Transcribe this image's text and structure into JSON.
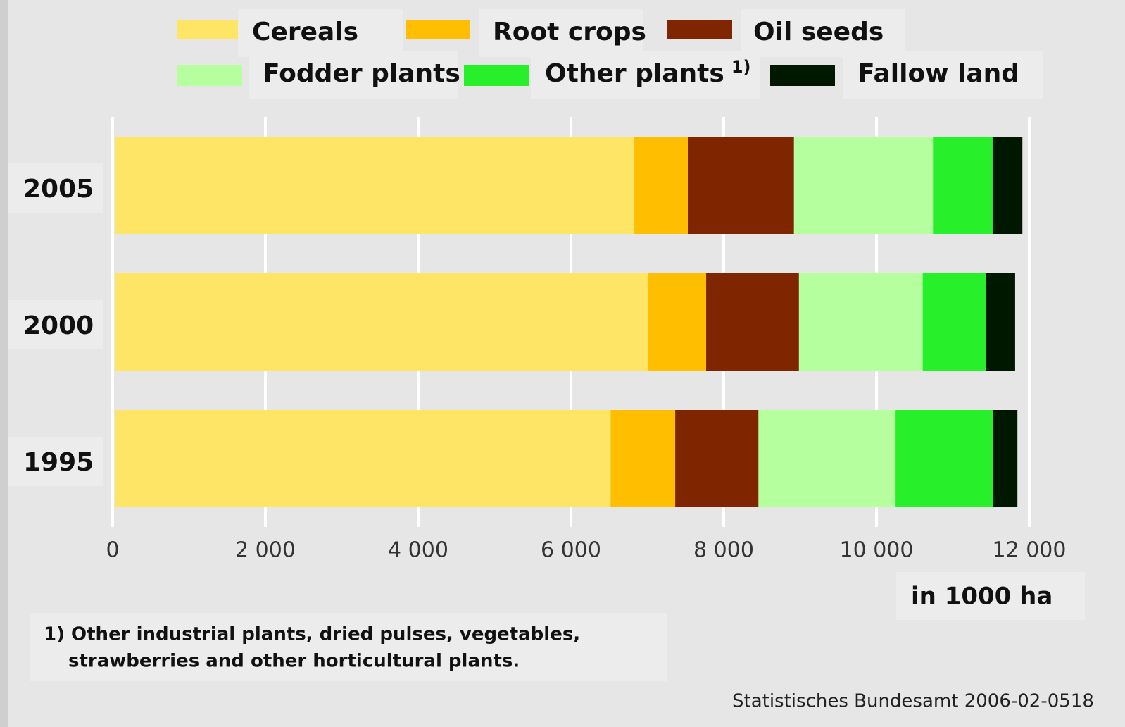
{
  "chart_data": {
    "type": "stacked-barh",
    "categories": [
      "2005",
      "2000",
      "1995"
    ],
    "series": [
      {
        "name": "Cereals",
        "color": "#ffe566",
        "values": [
          6830,
          7005,
          6520
        ]
      },
      {
        "name": "Root crops",
        "color": "#ffbe00",
        "values": [
          700,
          765,
          845
        ]
      },
      {
        "name": "Oil seeds",
        "color": "#7f2500",
        "values": [
          1390,
          1215,
          1090
        ]
      },
      {
        "name": "Fodder plants",
        "color": "#b6ff9e",
        "values": [
          1820,
          1620,
          1795
        ]
      },
      {
        "name": "Other plants",
        "color": "#27f02a",
        "values": [
          780,
          830,
          1280
        ],
        "footnote_marker": "1)"
      },
      {
        "name": "Fallow land",
        "color": "#001800",
        "values": [
          390,
          380,
          315
        ]
      }
    ],
    "xlim": [
      0,
      12000
    ],
    "xticks": [
      0,
      {
        "value": 2000,
        "label": "2 000"
      },
      {
        "value": 4000,
        "label": "4 000"
      },
      {
        "value": 6000,
        "label": "6 000"
      },
      {
        "value": 8000,
        "label": "8 000"
      },
      {
        "value": 10000,
        "label": "10 000"
      },
      {
        "value": 12000,
        "label": "12 000"
      }
    ],
    "grid": true,
    "xlabel": "in 1000 ha",
    "footnote": [
      "1) Other industrial plants, dried pulses, vegetables,",
      "strawberries and other horticultural plants."
    ],
    "source": "Statistisches Bundesamt 2006-02-0518"
  }
}
